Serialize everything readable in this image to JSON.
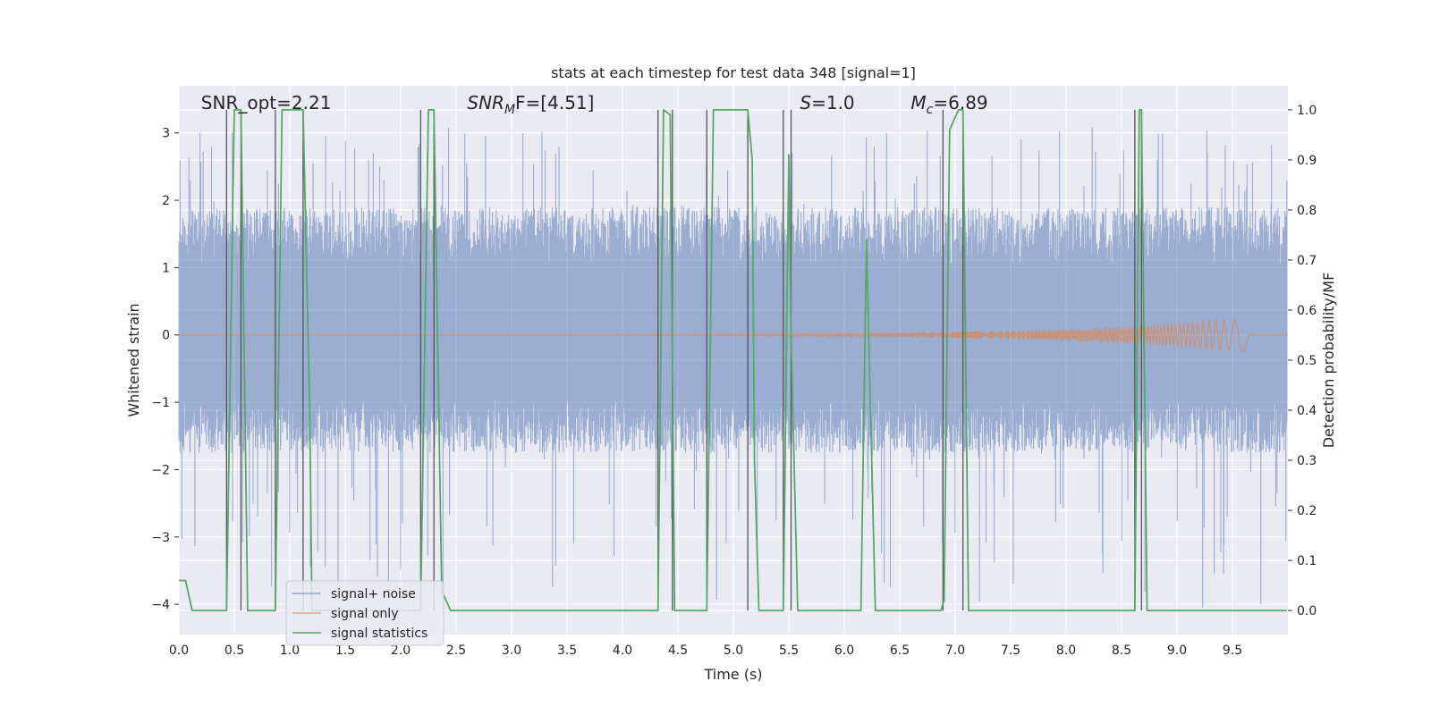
{
  "chart_data": {
    "type": "line",
    "title": "stats at each timestep for test data 348 [signal=1]",
    "xlabel": "Time (s)",
    "ylabel": "Whitened strain",
    "y2label": "Detection probability/MF",
    "xlim": [
      0.0,
      10.0
    ],
    "ylim": [
      -4.45,
      3.7
    ],
    "y2lim": [
      -0.048,
      1.048
    ],
    "xticks": [
      "0.0",
      "0.5",
      "1.0",
      "1.5",
      "2.0",
      "2.5",
      "3.0",
      "3.5",
      "4.0",
      "4.5",
      "5.0",
      "5.5",
      "6.0",
      "6.5",
      "7.0",
      "7.5",
      "8.0",
      "8.5",
      "9.0",
      "9.5"
    ],
    "yticks": [
      "3",
      "2",
      "1",
      "0",
      "−1",
      "−2",
      "−3",
      "−4"
    ],
    "y2ticks": [
      "1.0",
      "0.9",
      "0.8",
      "0.7",
      "0.6",
      "0.5",
      "0.4",
      "0.3",
      "0.2",
      "0.1",
      "0.0"
    ],
    "grid": true,
    "legend_position": "bottom-left",
    "annotations": [
      {
        "text": "SNR_opt=2.21",
        "x": 0.2,
        "y": 3.45
      },
      {
        "text": "SNRₘF=[4.51]",
        "main": "SNR",
        "sub": "M",
        "tail": "F=[4.51]",
        "x": 2.6,
        "y": 3.45
      },
      {
        "text": "S=1.0",
        "main": "S",
        "tail": "=1.0",
        "x": 5.6,
        "y": 3.45
      },
      {
        "text": "M_c=6.89",
        "main": "M",
        "sub": "c",
        "tail": "=6.89",
        "x": 6.6,
        "y": 3.45
      }
    ],
    "noise_band": {
      "upper": 1.9,
      "lower": -1.75,
      "max_spike": 3.15,
      "min_spike": -4.05
    },
    "vertical_lines": [
      0.43,
      0.56,
      0.87,
      1.12,
      2.18,
      2.3,
      4.32,
      4.45,
      4.76,
      5.13,
      5.45,
      5.52,
      6.89,
      7.07,
      8.62,
      8.68
    ],
    "series": [
      {
        "name": "signal+ noise",
        "color": "#4c72b0",
        "style": "noisy"
      },
      {
        "name": "signal only",
        "color": "#dd8452",
        "style": "chirp",
        "chirp_end": 9.65,
        "chirp_peak_amp": 0.25
      },
      {
        "name": "signal statistics",
        "color": "#55a868",
        "axis": "right",
        "x": [
          0.0,
          0.06,
          0.12,
          0.43,
          0.5,
          0.56,
          0.62,
          0.68,
          0.87,
          0.93,
          1.12,
          1.18,
          1.2,
          2.18,
          2.25,
          2.3,
          2.37,
          2.45,
          2.52,
          3.8,
          4.32,
          4.37,
          4.43,
          4.47,
          4.5,
          4.76,
          4.82,
          5.13,
          5.17,
          5.19,
          5.23,
          5.45,
          5.5,
          5.52,
          5.58,
          6.15,
          6.2,
          6.28,
          6.87,
          6.9,
          6.95,
          7.03,
          7.07,
          7.12,
          8.62,
          8.66,
          8.68,
          8.73,
          9.99
        ],
        "values": [
          0.06,
          0.06,
          0.0,
          0.0,
          1.0,
          1.0,
          0.0,
          0.0,
          0.0,
          1.0,
          1.0,
          0.4,
          0.0,
          0.0,
          1.0,
          1.0,
          0.04,
          0.0,
          0.0,
          0.0,
          0.0,
          1.0,
          0.99,
          0.0,
          0.0,
          0.0,
          1.0,
          1.0,
          0.9,
          0.3,
          0.0,
          0.0,
          0.91,
          0.55,
          0.0,
          0.0,
          0.74,
          0.0,
          0.0,
          0.02,
          0.96,
          1.0,
          1.0,
          0.0,
          0.0,
          1.0,
          1.0,
          0.0,
          0.0
        ]
      }
    ]
  }
}
